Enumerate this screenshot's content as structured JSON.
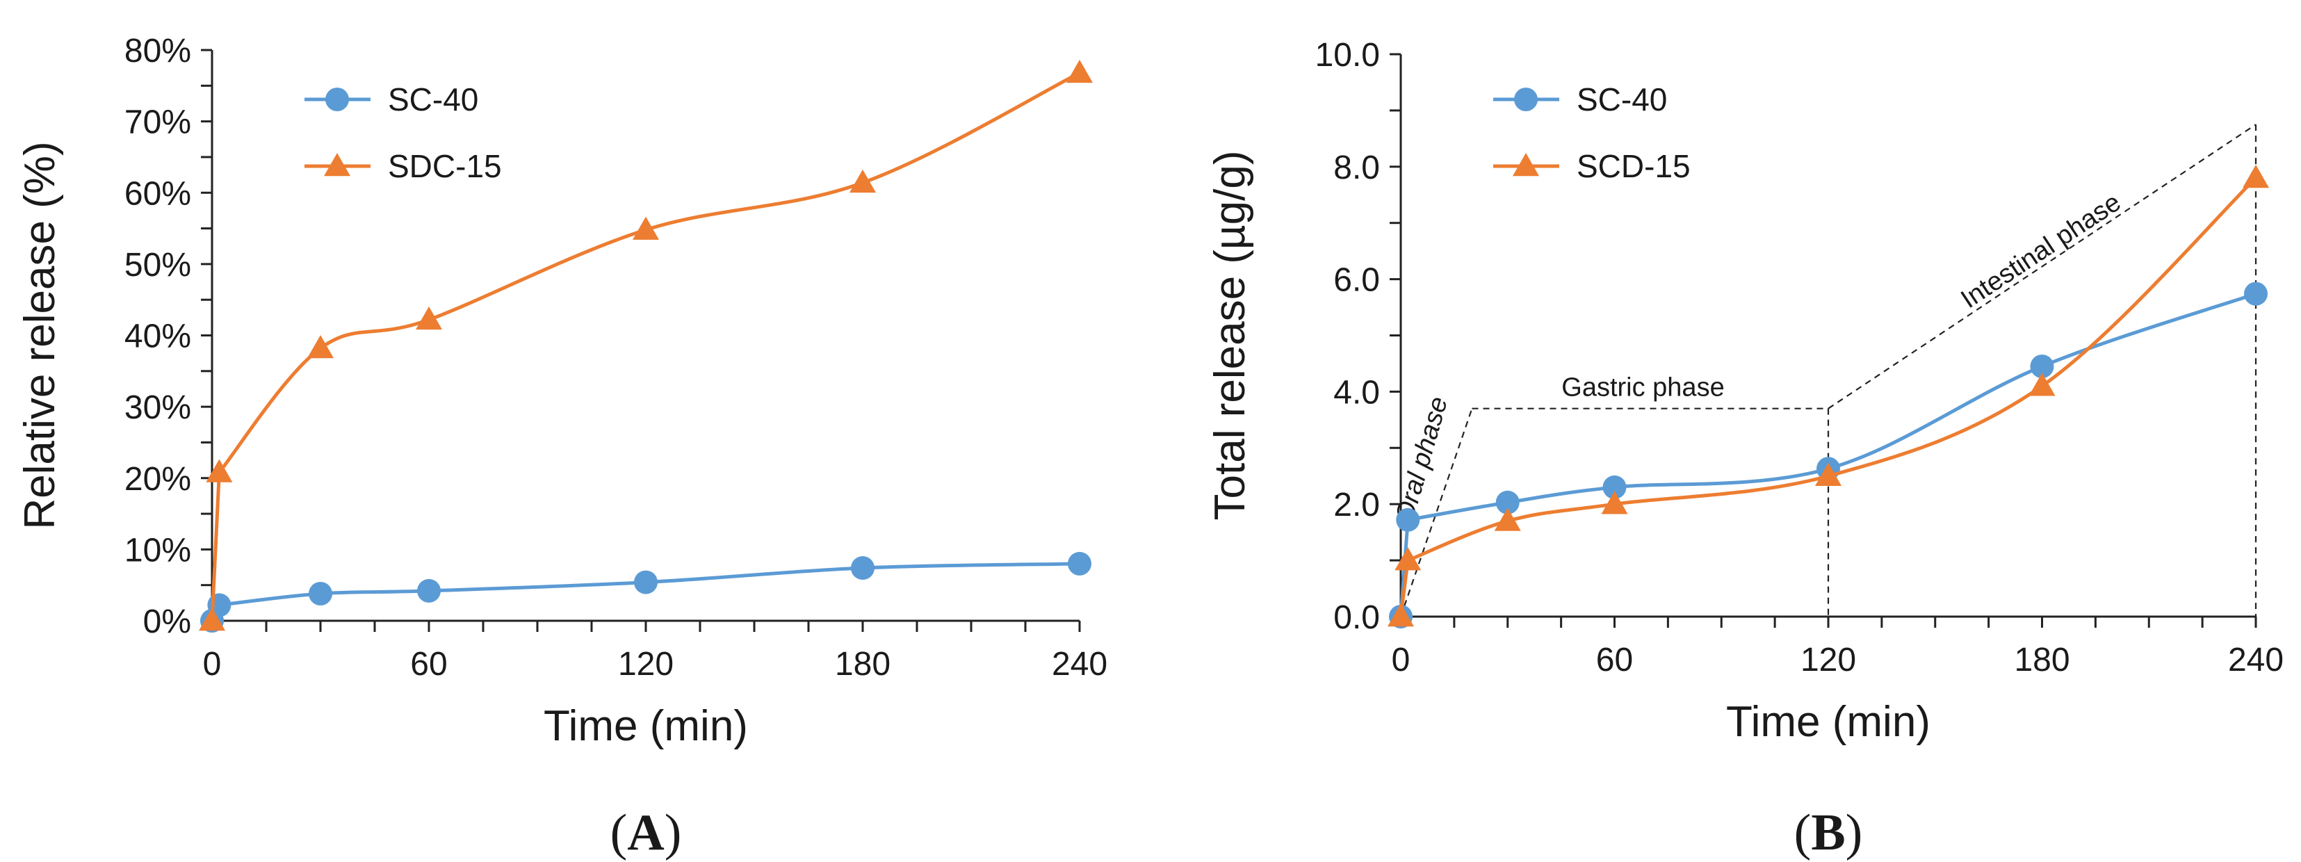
{
  "chart_data": [
    {
      "type": "line",
      "panel": "A",
      "xlabel": "Time (min)",
      "ylabel": "Relative release (%)",
      "xlim": [
        0,
        240
      ],
      "ylim": [
        0,
        80
      ],
      "xticks": [
        0,
        60,
        120,
        180,
        240
      ],
      "yticks": [
        0,
        10,
        20,
        30,
        40,
        50,
        60,
        70,
        80
      ],
      "ytick_labels": [
        "0%",
        "10%",
        "20%",
        "30%",
        "40%",
        "50%",
        "60%",
        "70%",
        "80%"
      ],
      "legend_position": "top-left",
      "series": [
        {
          "name": "SC-40",
          "marker": "circle",
          "color": "#5B9BD5",
          "x": [
            0,
            2,
            30,
            60,
            120,
            180,
            240
          ],
          "y": [
            0,
            2.2,
            3.8,
            4.2,
            5.4,
            7.4,
            8.0
          ]
        },
        {
          "name": "SDC-15",
          "marker": "triangle",
          "color": "#ED7D31",
          "x": [
            0,
            2,
            30,
            60,
            120,
            180,
            240
          ],
          "y": [
            0,
            20.8,
            38.2,
            42.2,
            54.8,
            61.4,
            76.8
          ]
        }
      ]
    },
    {
      "type": "line",
      "panel": "B",
      "xlabel": "Time (min)",
      "ylabel": "Total release (µg/g)",
      "xlim": [
        0,
        240
      ],
      "ylim": [
        0,
        10
      ],
      "xticks": [
        0,
        60,
        120,
        180,
        240
      ],
      "yticks": [
        0,
        2,
        4,
        6,
        8,
        10
      ],
      "ytick_labels": [
        "0.0",
        "2.0",
        "4.0",
        "6.0",
        "8.0",
        "10.0"
      ],
      "legend_position": "top-left",
      "annotations": [
        "Oral phase",
        "Gastric phase",
        "Intestinal phase"
      ],
      "series": [
        {
          "name": "SC-40",
          "marker": "circle",
          "color": "#5B9BD5",
          "x": [
            0,
            2,
            30,
            60,
            120,
            180,
            240
          ],
          "y": [
            0,
            1.72,
            2.03,
            2.3,
            2.63,
            4.45,
            5.74
          ]
        },
        {
          "name": "SCD-15",
          "marker": "triangle",
          "color": "#ED7D31",
          "x": [
            0,
            2,
            30,
            60,
            120,
            180,
            240
          ],
          "y": [
            0,
            1.0,
            1.7,
            2.0,
            2.5,
            4.1,
            7.8
          ]
        }
      ]
    }
  ]
}
